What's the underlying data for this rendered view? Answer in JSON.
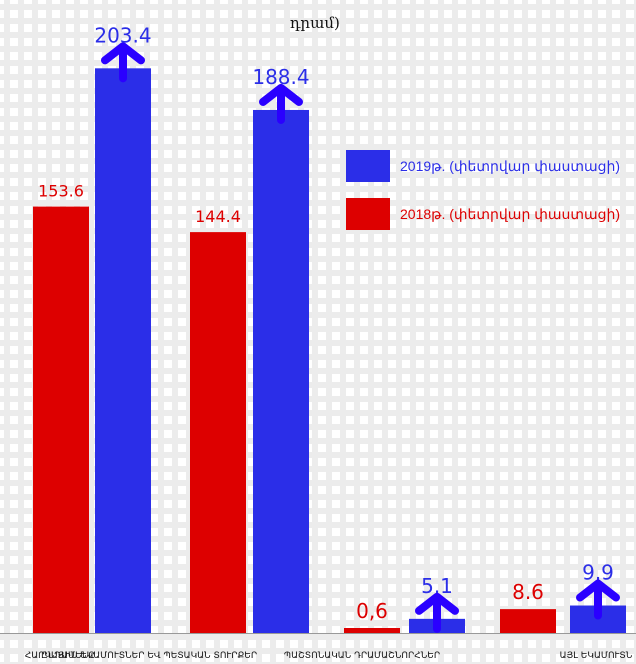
{
  "page": {
    "top_text": "դրամ)"
  },
  "chart_data": {
    "type": "bar",
    "title": "",
    "categories": [
      "ԸՆԴԱՄԵՆԸ",
      "ՀԱՐԿԱՅԻՆ ԵԿԱՄՈՒՏՆԵՐ ԵՎ ՊԵՏԱԿԱՆ ՏՈՒՐՔԵՐ",
      "ՊԱՇՏՈՆԱԿԱՆ ԴՐԱՄԱՇՆՈՐՀՆԵՐ",
      "ԱՅԼ ԵԿԱՄՈՒՏՆ"
    ],
    "series": [
      {
        "name": "2018թ. (փետրվար փաստացի)",
        "color": "#dd0000",
        "values": [
          153.6,
          144.4,
          0.6,
          8.6
        ],
        "labels": [
          "153.6",
          "144.4",
          "0,6",
          "8.6"
        ]
      },
      {
        "name": "2019թ. (փետրվար փաստացի)",
        "color": "#2b2ee8",
        "values": [
          203.4,
          188.4,
          5.1,
          9.9
        ],
        "labels": [
          "203.4",
          "188.4",
          "5.1",
          "9.9"
        ]
      }
    ],
    "xlabel": "",
    "ylabel": "",
    "ylim": [
      0,
      210
    ],
    "legend_position": "right",
    "arrow_color": "#2a00ff",
    "grid": false
  }
}
